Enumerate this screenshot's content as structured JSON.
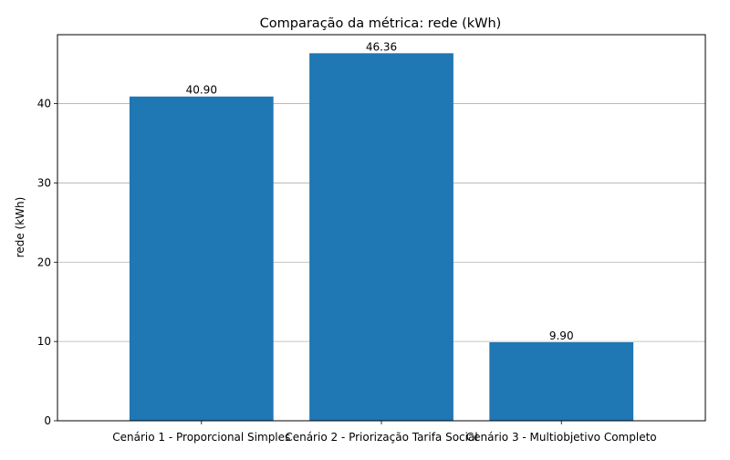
{
  "chart_data": {
    "type": "bar",
    "title": "Comparação da métrica: rede (kWh)",
    "xlabel": "",
    "ylabel": "rede (kWh)",
    "categories": [
      "Cenário 1 - Proporcional Simples",
      "Cenário 2 - Priorização Tarifa Social",
      "Cenário 3 - Multiobjetivo Completo"
    ],
    "values": [
      40.9,
      46.36,
      9.9
    ],
    "data_labels": [
      "40.90",
      "46.36",
      "9.90"
    ],
    "ylim": [
      0,
      48.7
    ],
    "yticks": [
      0,
      10,
      20,
      30,
      40
    ],
    "grid": "y",
    "bar_color": "#1f77b4",
    "grid_color": "#b0b0b0"
  }
}
